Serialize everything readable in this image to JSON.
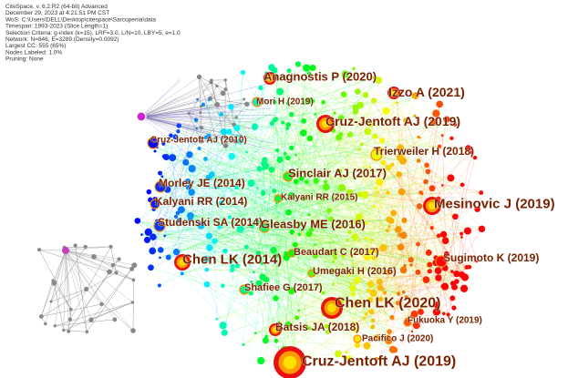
{
  "header": {
    "lines": [
      "CiteSpace, v. 6.2.R2 (64-bit) Advanced",
      "December 29, 2023 at 4:21:51 PM CST",
      "WoS: C:\\Users\\DELL\\Desktop\\citespace\\Sarcopenia\\data",
      "Timespan: 1993-2023 (Slice Length=1)",
      "Selection Criteria: g-index (k=15), LRF=3.0, L/N=10, LBY=5, e=1.0",
      "Network: N=846, E=3289 (Density=0.0092)",
      "Largest CC: 555 (65%)",
      "Nodes Labeled: 1.0%",
      "Pruning: None"
    ]
  },
  "nodes": [
    {
      "label": "Anagnostis P (2020)"
    },
    {
      "label": "Izzo A (2021)"
    },
    {
      "label": "Mori H (2019)"
    },
    {
      "label": "Cruz-Jentoft AJ (2019)"
    },
    {
      "label": "Cruz-Jentoft AJ (2010)"
    },
    {
      "label": "Trierweiler H (2018)"
    },
    {
      "label": "Sinclair AJ (2017)"
    },
    {
      "label": "Morley JE (2014)"
    },
    {
      "label": "Mesinovic J (2019)"
    },
    {
      "label": "Kalyani RR (2014)"
    },
    {
      "label": "Kalyani RR (2015)"
    },
    {
      "label": "Studenski SA (2014)"
    },
    {
      "label": "Gleasby ME (2016)"
    },
    {
      "label": "Chen LK (2014)"
    },
    {
      "label": "Beaudart C (2017)"
    },
    {
      "label": "Sugimoto K (2019)"
    },
    {
      "label": "Umegaki H (2016)"
    },
    {
      "label": "Shafiee G (2017)"
    },
    {
      "label": "Chen LK (2020)"
    },
    {
      "label": "Batsis JA (2018)"
    },
    {
      "label": "Fukuoka Y (2019)"
    },
    {
      "label": "Pacifico J (2020)"
    },
    {
      "label": "Cruz-Jentoft AJ (2019)"
    }
  ]
}
